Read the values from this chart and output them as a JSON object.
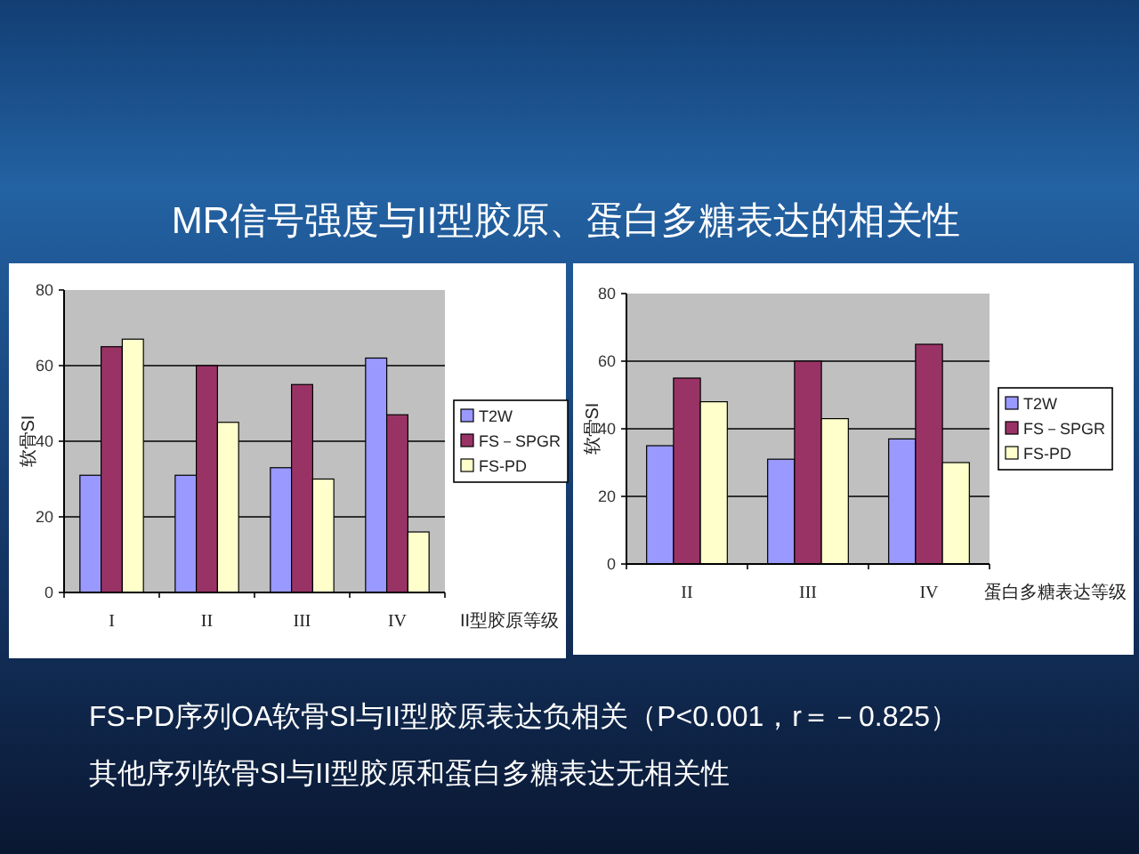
{
  "chart_data": [
    {
      "type": "bar",
      "title": "MR信号强度与II型胶原、蛋白多糖表达的相关性",
      "xlabel": "II型胶原等级",
      "ylabel": "软骨SI",
      "categories": [
        "I",
        "II",
        "III",
        "IV"
      ],
      "series": [
        {
          "name": "T2W",
          "color": "#9999ff",
          "values": [
            31,
            31,
            33,
            62
          ]
        },
        {
          "name": "FS－SPGR",
          "color": "#993366",
          "values": [
            65,
            60,
            55,
            47
          ]
        },
        {
          "name": "FS-PD",
          "color": "#ffffcc",
          "values": [
            67,
            45,
            30,
            16
          ]
        }
      ],
      "ylim": [
        0,
        80
      ],
      "yticks": [
        0,
        20,
        40,
        60,
        80
      ],
      "grid": "y",
      "legend": "right",
      "annotations": [
        "FS-PD序列OA软骨SI与II型胶原表达负相关（P<0.001，r＝－0.825）",
        "其他序列软骨SI与II型胶原和蛋白多糖表达无相关性"
      ]
    },
    {
      "type": "bar",
      "xlabel": "蛋白多糖表达等级",
      "ylabel": "软骨SI",
      "categories": [
        "II",
        "III",
        "IV"
      ],
      "series": [
        {
          "name": "T2W",
          "color": "#9999ff",
          "values": [
            35,
            31,
            37
          ]
        },
        {
          "name": "FS－SPGR",
          "color": "#993366",
          "values": [
            55,
            60,
            65
          ]
        },
        {
          "name": "FS-PD",
          "color": "#ffffcc",
          "values": [
            48,
            43,
            30
          ]
        }
      ],
      "ylim": [
        0,
        80
      ],
      "yticks": [
        0,
        20,
        40,
        60,
        80
      ],
      "grid": "y",
      "legend": "right"
    }
  ]
}
